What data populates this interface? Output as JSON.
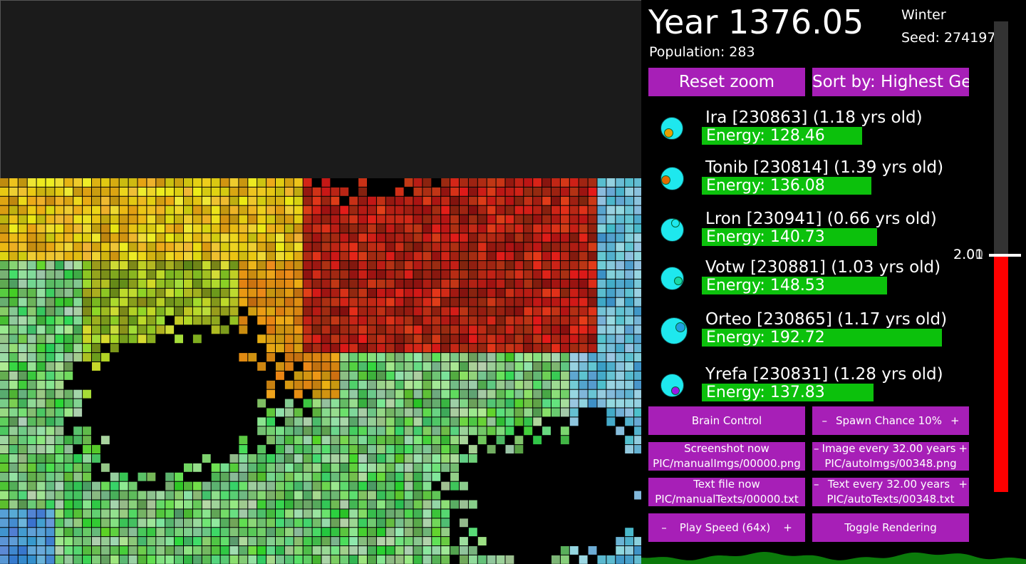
{
  "header": {
    "year": "Year 1376.05",
    "season": "Winter",
    "seed": "Seed: 274197",
    "population": "Population: 283"
  },
  "buttons": {
    "reset_zoom": "Reset zoom",
    "sort_by": "Sort by: Highest Gen",
    "brain_control": "Brain Control",
    "spawn_minus": "–",
    "spawn_label": "Spawn Chance 10%",
    "spawn_plus": "+",
    "screenshot_now": "Screenshot now",
    "screenshot_path": "PIC/manualImgs/00000.png",
    "image_minus": "–",
    "image_every": "Image every 32.00 years",
    "image_plus": "+",
    "image_path": "PIC/autoImgs/00348.png",
    "textfile_now": "Text file now",
    "textfile_path": "PIC/manualTexts/00000.txt",
    "text_minus": "–",
    "text_every": "Text every 32.00 years",
    "text_plus": "+",
    "text_path": "PIC/autoTexts/00348.txt",
    "speed_minus": "–",
    "speed_label": "Play Speed (64x)",
    "speed_plus": "+",
    "toggle_rendering": "Toggle Rendering"
  },
  "creatures": [
    {
      "name": "Ira [230863] (1.18 yrs old)",
      "energy_label": "Energy: 128.46",
      "energy": 128.46,
      "mouth_color": "#e8a000"
    },
    {
      "name": "Tonib [230814] (1.39 yrs old)",
      "energy_label": "Energy: 136.08",
      "energy": 136.08,
      "mouth_color": "#e06a00"
    },
    {
      "name": "Lron [230941] (0.66 yrs old)",
      "energy_label": "Energy: 140.73",
      "energy": 140.73,
      "mouth_color": "#1ee8ee"
    },
    {
      "name": "Votw [230881] (1.03 yrs old)",
      "energy_label": "Energy: 148.53",
      "energy": 148.53,
      "mouth_color": "#18d8a8"
    },
    {
      "name": "Orteo [230865] (1.17 yrs old)",
      "energy_label": "Energy: 192.72",
      "energy": 192.72,
      "mouth_color": "#1fa0e0"
    },
    {
      "name": "Yrefa [230831] (1.28 yrs old)",
      "energy_label": "Energy: 137.83",
      "energy": 137.83,
      "mouth_color": "#9a18e8"
    }
  ],
  "thermometer": {
    "label_a": "2.01",
    "label_b": "2.00",
    "level_fraction": 0.5
  },
  "colors": {
    "button": "#a71fb7",
    "creature_body": "#1ee8ee",
    "energy_bar": "#0cc10c",
    "thermometer": "#ff0000"
  }
}
